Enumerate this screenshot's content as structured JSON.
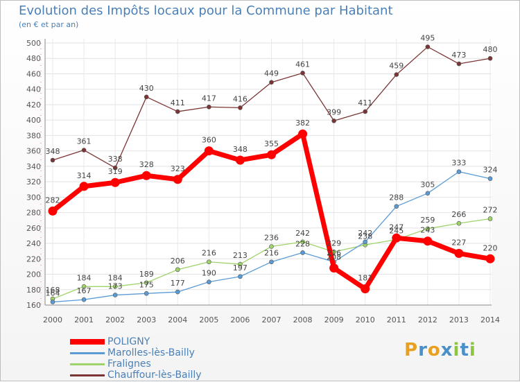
{
  "header": {
    "title": "Evolution des Impôts locaux pour la Commune par Habitant",
    "subtitle": "(en € et par an)"
  },
  "brand": {
    "letters": [
      "P",
      "r",
      "o",
      "x",
      "i",
      "t",
      "i"
    ],
    "colors": [
      "#e8a020",
      "#4a90c8",
      "#e8a020",
      "#4a90c8",
      "#8cc63f",
      "#4a90c8",
      "#8cc63f"
    ]
  },
  "chart_data": {
    "type": "line",
    "title": "Evolution des Impôts locaux pour la Commune par Habitant",
    "subtitle": "(en € et par an)",
    "xlabel": "",
    "ylabel": "",
    "categories": [
      "2000",
      "2001",
      "2002",
      "2003",
      "2004",
      "2005",
      "2006",
      "2007",
      "2008",
      "2009",
      "2010",
      "2011",
      "2012",
      "2013",
      "2014"
    ],
    "ylim": [
      160,
      500
    ],
    "yticks": [
      160,
      180,
      200,
      220,
      240,
      260,
      280,
      300,
      320,
      340,
      360,
      380,
      400,
      420,
      440,
      460,
      480,
      500
    ],
    "grid": true,
    "legend_position": "bottom-left",
    "series": [
      {
        "name": "POLIGNY",
        "color": "#ff0000",
        "values": [
          282,
          314,
          319,
          328,
          323,
          360,
          348,
          355,
          382,
          208,
          181,
          247,
          243,
          227,
          220
        ],
        "labels": [
          "282",
          "314",
          "319",
          "328",
          "323",
          "360",
          "348",
          "355",
          "382",
          "208",
          "181",
          "247",
          "243",
          "227",
          "220"
        ]
      },
      {
        "name": "Marolles-lès-Bailly",
        "color": "#5a9bd5",
        "values": [
          164,
          167,
          173,
          175,
          177,
          190,
          197,
          216,
          228,
          216,
          242,
          288,
          305,
          333,
          324
        ],
        "labels": [
          "164",
          "167",
          "173",
          "175",
          "177",
          "190",
          "197",
          "216",
          "228",
          "216",
          "242",
          "288",
          "305",
          "333",
          "324"
        ]
      },
      {
        "name": "Fralignes",
        "color": "#9ed36a",
        "values": [
          168,
          184,
          184,
          189,
          206,
          216,
          213,
          236,
          242,
          229,
          238,
          245,
          259,
          266,
          272
        ],
        "labels": [
          "168",
          "184",
          "184",
          "189",
          "206",
          "216",
          "213",
          "236",
          "242",
          "229",
          "238",
          "245",
          "259",
          "266",
          "272"
        ]
      },
      {
        "name": "Chauffour-lès-Bailly",
        "color": "#7b3535",
        "values": [
          348,
          361,
          338,
          430,
          411,
          417,
          416,
          449,
          461,
          399,
          411,
          459,
          495,
          473,
          480
        ],
        "labels": [
          "348",
          "361",
          "338",
          "430",
          "411",
          "417",
          "416",
          "449",
          "461",
          "399",
          "411",
          "459",
          "495",
          "473",
          "480"
        ]
      }
    ]
  }
}
